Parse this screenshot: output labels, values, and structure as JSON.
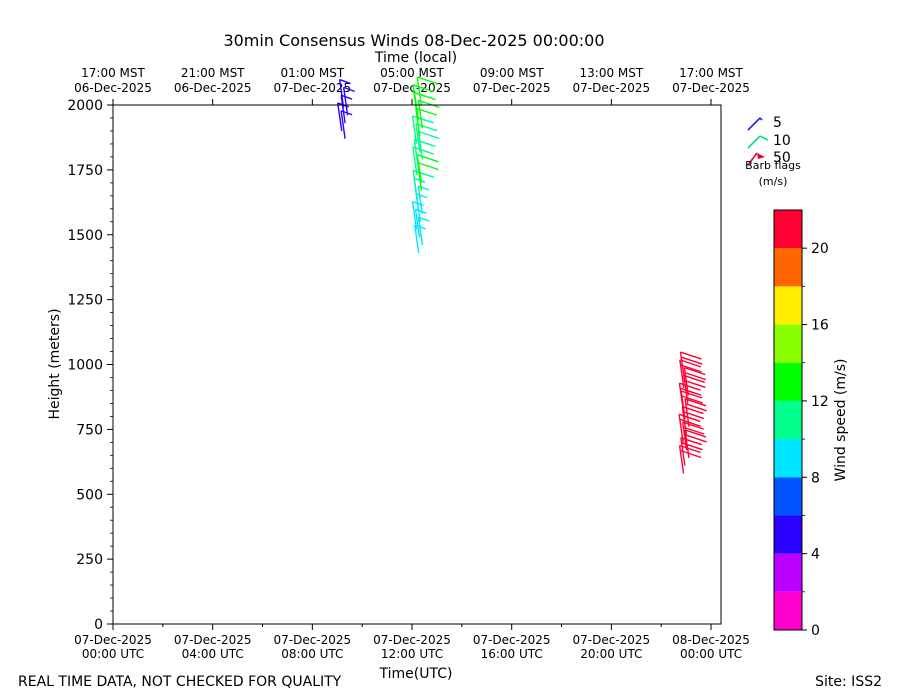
{
  "chart_data": {
    "type": "wind-barb",
    "title": "30min Consensus Winds 08-Dec-2025 00:00:00",
    "top_axis_title": "Time (local)",
    "xlabel": "Time(UTC)",
    "ylabel": "Height (meters)",
    "ylim": [
      0,
      2000
    ],
    "yticks": [
      0,
      250,
      500,
      750,
      1000,
      1250,
      1500,
      1750,
      2000
    ],
    "xlim_hours_utc": [
      0,
      24.4
    ],
    "bottom_ticks": [
      {
        "hour": 0,
        "line1": "07-Dec-2025",
        "line2": "00:00 UTC"
      },
      {
        "hour": 4,
        "line1": "07-Dec-2025",
        "line2": "04:00 UTC"
      },
      {
        "hour": 8,
        "line1": "07-Dec-2025",
        "line2": "08:00 UTC"
      },
      {
        "hour": 12,
        "line1": "07-Dec-2025",
        "line2": "12:00 UTC"
      },
      {
        "hour": 16,
        "line1": "07-Dec-2025",
        "line2": "16:00 UTC"
      },
      {
        "hour": 20,
        "line1": "07-Dec-2025",
        "line2": "20:00 UTC"
      },
      {
        "hour": 24,
        "line1": "08-Dec-2025",
        "line2": "00:00 UTC"
      }
    ],
    "top_ticks": [
      {
        "hour": 0,
        "line1": "17:00 MST",
        "line2": "06-Dec-2025"
      },
      {
        "hour": 4,
        "line1": "21:00 MST",
        "line2": "06-Dec-2025"
      },
      {
        "hour": 8,
        "line1": "01:00 MST",
        "line2": "07-Dec-2025"
      },
      {
        "hour": 12,
        "line1": "05:00 MST",
        "line2": "07-Dec-2025"
      },
      {
        "hour": 16,
        "line1": "09:00 MST",
        "line2": "07-Dec-2025"
      },
      {
        "hour": 20,
        "line1": "13:00 MST",
        "line2": "07-Dec-2025"
      },
      {
        "hour": 24,
        "line1": "17:00 MST",
        "line2": "07-Dec-2025"
      }
    ],
    "legend": {
      "items": [
        {
          "label": "5",
          "color": "#1f1fd8"
        },
        {
          "label": "10",
          "color": "#00e07a"
        },
        {
          "label": "50",
          "color": "#e8002e"
        }
      ],
      "caption_line1": "Barb flags",
      "caption_line2": "(m/s)",
      "placement": "right"
    },
    "colorbar": {
      "label": "Wind speed (m/s)",
      "range": [
        0,
        22
      ],
      "ticks": [
        0,
        4,
        8,
        12,
        16,
        20
      ],
      "bins": [
        {
          "from": 0,
          "to": 2,
          "color": "#ff00cc"
        },
        {
          "from": 2,
          "to": 4,
          "color": "#bb00ff"
        },
        {
          "from": 4,
          "to": 6,
          "color": "#2a00ff"
        },
        {
          "from": 6,
          "to": 8,
          "color": "#0055ff"
        },
        {
          "from": 8,
          "to": 10,
          "color": "#00e5ff"
        },
        {
          "from": 10,
          "to": 12,
          "color": "#00ff8c"
        },
        {
          "from": 12,
          "to": 14,
          "color": "#00ff00"
        },
        {
          "from": 14,
          "to": 16,
          "color": "#88ff00"
        },
        {
          "from": 16,
          "to": 18,
          "color": "#ffee00"
        },
        {
          "from": 18,
          "to": 20,
          "color": "#ff6600"
        },
        {
          "from": 20,
          "to": 22,
          "color": "#ff0033"
        }
      ]
    },
    "series": [
      {
        "hour": 9.3,
        "barbs": [
          {
            "height": 1870,
            "speed": 5
          },
          {
            "height": 1900,
            "speed": 5
          },
          {
            "height": 1930,
            "speed": 5
          },
          {
            "height": 1960,
            "speed": 5
          },
          {
            "height": 1990,
            "speed": 5
          }
        ]
      },
      {
        "hour": 12.3,
        "barbs": [
          {
            "height": 1430,
            "speed": 9
          },
          {
            "height": 1460,
            "speed": 9
          },
          {
            "height": 1490,
            "speed": 9
          },
          {
            "height": 1520,
            "speed": 9
          },
          {
            "height": 1550,
            "speed": 9
          },
          {
            "height": 1580,
            "speed": 9
          },
          {
            "height": 1610,
            "speed": 9
          },
          {
            "height": 1640,
            "speed": 10
          },
          {
            "height": 1670,
            "speed": 12
          },
          {
            "height": 1700,
            "speed": 12
          },
          {
            "height": 1730,
            "speed": 11
          },
          {
            "height": 1760,
            "speed": 11
          },
          {
            "height": 1790,
            "speed": 11
          },
          {
            "height": 1820,
            "speed": 11
          },
          {
            "height": 1850,
            "speed": 11
          },
          {
            "height": 1880,
            "speed": 13
          },
          {
            "height": 1910,
            "speed": 13
          },
          {
            "height": 1940,
            "speed": 13
          },
          {
            "height": 1970,
            "speed": 13
          },
          {
            "height": 2000,
            "speed": 13
          }
        ]
      },
      {
        "hour": 23.0,
        "barbs": [
          {
            "height": 580,
            "speed": 21
          },
          {
            "height": 610,
            "speed": 21
          },
          {
            "height": 640,
            "speed": 21
          },
          {
            "height": 670,
            "speed": 21
          },
          {
            "height": 700,
            "speed": 21
          },
          {
            "height": 730,
            "speed": 21
          },
          {
            "height": 760,
            "speed": 21
          },
          {
            "height": 790,
            "speed": 21
          },
          {
            "height": 820,
            "speed": 21
          },
          {
            "height": 850,
            "speed": 21
          },
          {
            "height": 880,
            "speed": 21
          },
          {
            "height": 910,
            "speed": 21
          },
          {
            "height": 940,
            "speed": 21
          }
        ]
      }
    ]
  },
  "footer": {
    "disclaimer": "REAL TIME DATA, NOT CHECKED FOR QUALITY",
    "site": "Site: ISS2"
  }
}
